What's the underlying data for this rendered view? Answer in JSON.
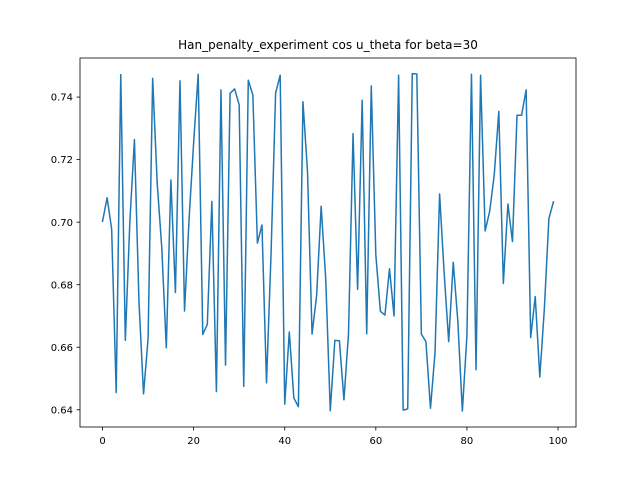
{
  "chart_data": {
    "type": "line",
    "title": "Han_penalty_experiment cos u_theta for beta=30",
    "xlabel": "",
    "ylabel": "",
    "xlim": [
      -4.95,
      103.95
    ],
    "ylim": [
      0.6345,
      0.7525
    ],
    "x_ticks": [
      0,
      20,
      40,
      60,
      80,
      100
    ],
    "y_ticks": [
      0.64,
      0.66,
      0.68,
      0.7,
      0.72,
      0.74
    ],
    "x_tick_labels": [
      "0",
      "20",
      "40",
      "60",
      "80",
      "100"
    ],
    "y_tick_labels": [
      "0.64",
      "0.66",
      "0.68",
      "0.70",
      "0.72",
      "0.74"
    ],
    "grid": false,
    "legend": "none",
    "series": [
      {
        "color": "#1f77b4",
        "x": [
          0,
          1,
          2,
          3,
          4,
          5,
          6,
          7,
          8,
          9,
          10,
          11,
          12,
          13,
          14,
          15,
          16,
          17,
          18,
          19,
          20,
          21,
          22,
          23,
          24,
          25,
          26,
          27,
          28,
          29,
          30,
          31,
          32,
          33,
          34,
          35,
          36,
          37,
          38,
          39,
          40,
          41,
          42,
          43,
          44,
          45,
          46,
          47,
          48,
          49,
          50,
          51,
          52,
          53,
          54,
          55,
          56,
          57,
          58,
          59,
          60,
          61,
          62,
          63,
          64,
          65,
          66,
          67,
          68,
          69,
          70,
          71,
          72,
          73,
          74,
          75,
          76,
          77,
          78,
          79,
          80,
          81,
          82,
          83,
          84,
          85,
          86,
          87,
          88,
          89,
          90,
          91,
          92,
          93,
          94,
          95,
          96,
          97,
          98,
          99
        ],
        "values": [
          0.7003,
          0.7078,
          0.6978,
          0.6455,
          0.7472,
          0.6622,
          0.7003,
          0.7264,
          0.6745,
          0.6451,
          0.6628,
          0.746,
          0.7125,
          0.6919,
          0.6598,
          0.7135,
          0.6775,
          0.7452,
          0.6716,
          0.701,
          0.7254,
          0.7473,
          0.6641,
          0.6673,
          0.7066,
          0.6458,
          0.7423,
          0.6543,
          0.7412,
          0.7426,
          0.7375,
          0.6475,
          0.7454,
          0.7407,
          0.6933,
          0.6991,
          0.6486,
          0.6901,
          0.7413,
          0.747,
          0.6418,
          0.6649,
          0.6438,
          0.641,
          0.7385,
          0.7162,
          0.6642,
          0.6765,
          0.7051,
          0.6819,
          0.6397,
          0.6622,
          0.6621,
          0.6432,
          0.6643,
          0.7283,
          0.6785,
          0.739,
          0.6643,
          0.7436,
          0.6896,
          0.6715,
          0.6703,
          0.6851,
          0.67,
          0.747,
          0.6399,
          0.6403,
          0.7475,
          0.7474,
          0.6642,
          0.6618,
          0.6405,
          0.6583,
          0.709,
          0.6838,
          0.6618,
          0.6872,
          0.6684,
          0.6396,
          0.6637,
          0.7473,
          0.6528,
          0.747,
          0.6972,
          0.7035,
          0.7151,
          0.7354,
          0.6804,
          0.7058,
          0.6938,
          0.7342,
          0.7342,
          0.7423,
          0.6631,
          0.6762,
          0.6505,
          0.6723,
          0.7012,
          0.7065
        ]
      }
    ]
  }
}
